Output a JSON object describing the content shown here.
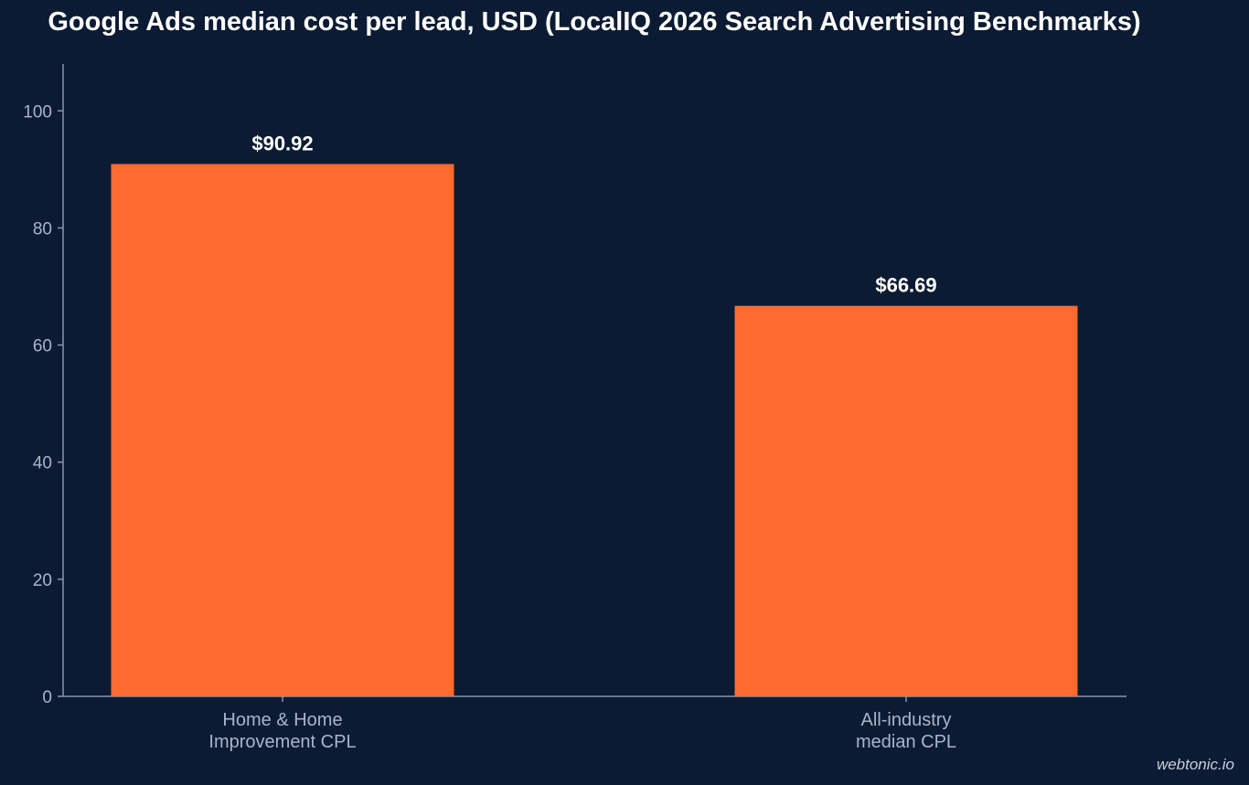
{
  "chart_data": {
    "type": "bar",
    "title": "Google Ads median cost per lead, USD (LocalIQ 2026 Search Advertising Benchmarks)",
    "categories": [
      [
        "Home & Home",
        "Improvement CPL"
      ],
      [
        "All-industry",
        "median CPL"
      ]
    ],
    "values": [
      90.92,
      66.69
    ],
    "data_labels": [
      "$90.92",
      "$66.69"
    ],
    "yticks": [
      0,
      20,
      40,
      60,
      80,
      100
    ],
    "ylim": [
      0,
      108
    ],
    "xlabel": "",
    "ylabel": "",
    "grid": false,
    "bar_color": "#ff6b2e",
    "axis_color": "#8a96ab"
  },
  "watermark": "webtonic.io"
}
